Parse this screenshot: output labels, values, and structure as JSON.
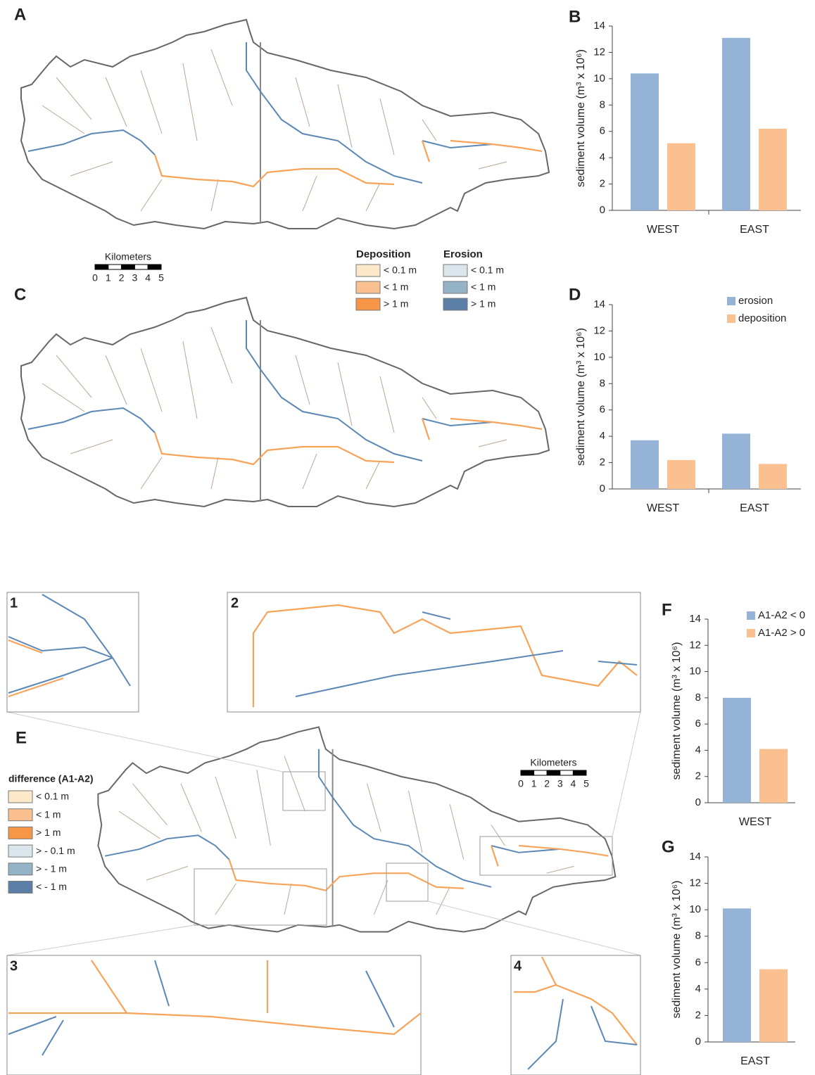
{
  "chart_data": [
    {
      "type": "bar",
      "label": "B",
      "ylabel": "sediment volume (m³ x 10⁶)",
      "categories": [
        "WEST",
        "EAST"
      ],
      "series": [
        {
          "name": "erosion",
          "color": "#95b3d7",
          "values": [
            10.4,
            13.1
          ]
        },
        {
          "name": "deposition",
          "color": "#fac090",
          "values": [
            5.1,
            6.2
          ]
        }
      ],
      "ylim": [
        0,
        14
      ],
      "yticks": [
        0,
        2,
        4,
        6,
        8,
        10,
        12,
        14
      ],
      "legend": false
    },
    {
      "type": "bar",
      "label": "D",
      "ylabel": "sediment volume (m³ x 10⁶)",
      "categories": [
        "WEST",
        "EAST"
      ],
      "series": [
        {
          "name": "erosion",
          "color": "#95b3d7",
          "values": [
            3.7,
            4.2
          ]
        },
        {
          "name": "deposition",
          "color": "#fac090",
          "values": [
            2.2,
            1.9
          ]
        }
      ],
      "ylim": [
        0,
        14
      ],
      "yticks": [
        0,
        2,
        4,
        6,
        8,
        10,
        12,
        14
      ],
      "legend": true
    },
    {
      "type": "bar",
      "label": "F",
      "ylabel": "sediment volume (m³ x 10⁶)",
      "categories": [
        "WEST"
      ],
      "series": [
        {
          "name": "A1-A2 < 0",
          "color": "#95b3d7",
          "values": [
            8.0
          ]
        },
        {
          "name": "A1-A2 > 0",
          "color": "#fac090",
          "values": [
            4.1
          ]
        }
      ],
      "ylim": [
        0,
        14
      ],
      "yticks": [
        0,
        2,
        4,
        6,
        8,
        10,
        12,
        14
      ],
      "legend": true
    },
    {
      "type": "bar",
      "label": "G",
      "ylabel": "sediment volume (m³ x 10⁶)",
      "categories": [
        "EAST"
      ],
      "series": [
        {
          "name": "A1-A2 < 0",
          "color": "#95b3d7",
          "values": [
            10.1
          ]
        },
        {
          "name": "A1-A2 > 0",
          "color": "#fac090",
          "values": [
            5.5
          ]
        }
      ],
      "ylim": [
        0,
        14
      ],
      "yticks": [
        0,
        2,
        4,
        6,
        8,
        10,
        12,
        14
      ],
      "legend": false
    }
  ],
  "maps": {
    "panels": [
      "A",
      "C",
      "E"
    ],
    "insets": [
      "1",
      "2",
      "3",
      "4"
    ]
  },
  "scale_bars": [
    {
      "title": "Kilometers",
      "ticks": [
        0,
        1,
        2,
        3,
        4,
        5
      ]
    },
    {
      "title": "Kilometers",
      "ticks": [
        0,
        1,
        2,
        3,
        4,
        5
      ]
    }
  ],
  "legend_ac": [
    {
      "title": "Deposition",
      "items": [
        {
          "label": "< 0.1 m",
          "color": "#fde9c9"
        },
        {
          "label": "< 1 m",
          "color": "#fac090"
        },
        {
          "label": "> 1 m",
          "color": "#f79646"
        }
      ]
    },
    {
      "title": "Erosion",
      "items": [
        {
          "label": "< 0.1 m",
          "color": "#dbe5ec"
        },
        {
          "label": "< 1 m",
          "color": "#95b3c7"
        },
        {
          "label": "> 1 m",
          "color": "#5b7fa6"
        }
      ]
    }
  ],
  "legend_e": {
    "title": "difference (A1-A2)",
    "items": [
      {
        "label": "< 0.1 m",
        "color": "#fde9c9"
      },
      {
        "label": "< 1 m",
        "color": "#fac090"
      },
      {
        "label": "> 1 m",
        "color": "#f79646"
      },
      {
        "label": "> - 0.1 m",
        "color": "#dbe5ec"
      },
      {
        "label": "> - 1 m",
        "color": "#95b3c7"
      },
      {
        "label": "< - 1 m",
        "color": "#5b7fa6"
      }
    ]
  }
}
